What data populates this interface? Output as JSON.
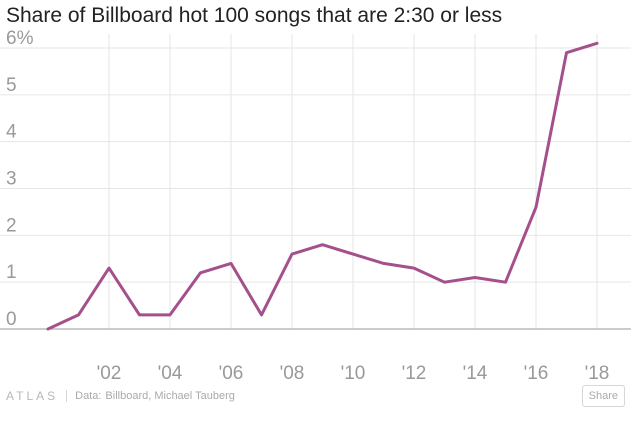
{
  "title": "Share of Billboard hot 100 songs that are 2:30 or less",
  "footer": {
    "logo": "ATLAS",
    "source_label": "Data:",
    "source": "Billboard, Michael Tauberg",
    "share_label": "Share"
  },
  "colors": {
    "line": "#a4508c",
    "grid": "#e6e6e6",
    "axis": "#999999",
    "labels": "#999999"
  },
  "chart_data": {
    "type": "line",
    "title": "Share of Billboard hot 100 songs that are 2:30 or less",
    "xlabel": "",
    "ylabel": "",
    "x": [
      2000,
      2001,
      2002,
      2003,
      2004,
      2005,
      2006,
      2007,
      2008,
      2009,
      2010,
      2011,
      2012,
      2013,
      2014,
      2015,
      2016,
      2017,
      2018
    ],
    "values": [
      0,
      0.3,
      1.3,
      0.3,
      0.3,
      1.2,
      1.4,
      0.3,
      1.6,
      1.8,
      1.6,
      1.4,
      1.3,
      1.0,
      1.1,
      1.0,
      2.6,
      5.9,
      6.1
    ],
    "xlim": [
      2000,
      2018
    ],
    "ylim": [
      0,
      6
    ],
    "x_ticks": [
      2002,
      2004,
      2006,
      2008,
      2010,
      2012,
      2014,
      2016,
      2018
    ],
    "x_tick_labels": [
      "'02",
      "'04",
      "'06",
      "'08",
      "'10",
      "'12",
      "'14",
      "'16",
      "'18"
    ],
    "y_ticks": [
      0,
      1,
      2,
      3,
      4,
      5,
      6
    ],
    "y_tick_labels": [
      "0",
      "1",
      "2",
      "3",
      "4",
      "5",
      "6%"
    ],
    "grid": true,
    "legend": "none"
  }
}
